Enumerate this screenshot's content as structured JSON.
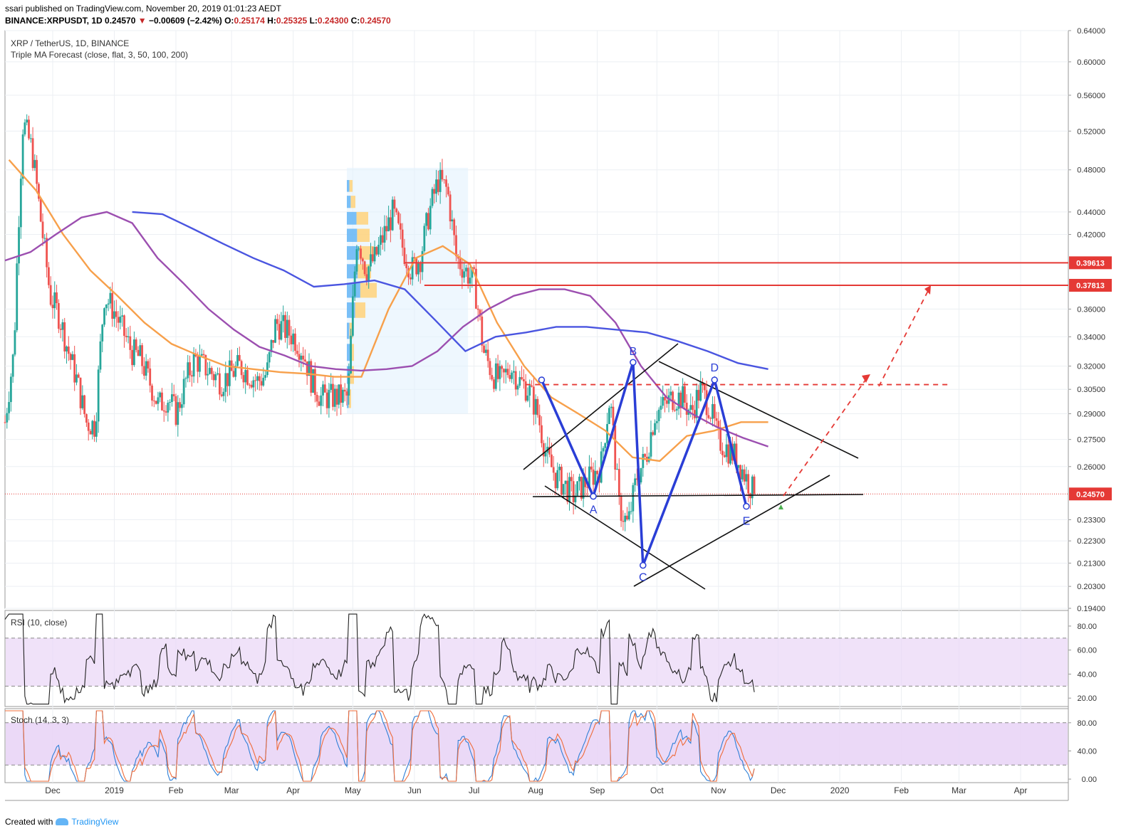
{
  "header": {
    "published": "ssari published on TradingView.com, November 20, 2019 01:01:23 AEDT",
    "symbol": "BINANCE:XRPUSDT, 1D",
    "last": "0.24570",
    "change": "−0.00609 (−2.42%)",
    "o_label": "O:",
    "o": "0.25174",
    "h_label": "H:",
    "h": "0.25325",
    "l_label": "L:",
    "l": "0.24300",
    "c_label": "C:",
    "c": "0.24570"
  },
  "legend": {
    "title": "XRP / TetherUS, 1D, BINANCE",
    "indicator": "Triple MA Forecast (close, flat, 3, 50, 100, 200)",
    "rsi": "RSI (10, close)",
    "stoch": "Stoch (14, 3, 3)"
  },
  "footer": {
    "created": "Created with",
    "brand": "TradingView"
  },
  "colors": {
    "up": "#26a69a",
    "down": "#ef5350",
    "ma50": "#f7a04b",
    "ma100": "#9c4fb0",
    "ma200": "#4a55e0",
    "pattern": "#2a3ed6",
    "resistance": "#e53935",
    "rsi": "#222222",
    "stoch_k": "#2e7fd6",
    "stoch_d": "#ef6c3a",
    "band": "#e9d5f6"
  },
  "chart_data": {
    "type": "candlestick",
    "price_axis": [
      "0.64000",
      "0.60000",
      "0.56000",
      "0.52000",
      "0.48000",
      "0.44000",
      "0.42000",
      "0.39613",
      "0.37813",
      "0.36000",
      "0.34000",
      "0.32000",
      "0.30500",
      "0.29000",
      "0.27500",
      "0.26000",
      "0.24570",
      "0.23300",
      "0.22300",
      "0.21300",
      "0.20300",
      "0.19400"
    ],
    "ylim": [
      0.194,
      0.64
    ],
    "time_axis": [
      "Dec",
      "2019",
      "Feb",
      "Mar",
      "Apr",
      "May",
      "Jun",
      "Jul",
      "Aug",
      "Sep",
      "Oct",
      "Nov",
      "Dec",
      "2020",
      "Feb",
      "Mar",
      "Apr"
    ],
    "levels": [
      {
        "label": "0.39613",
        "value": 0.39613
      },
      {
        "label": "0.37813",
        "value": 0.37813
      }
    ],
    "current_price": {
      "label": "0.24570",
      "value": 0.2457
    },
    "pattern_points": [
      {
        "label": "A",
        "date": "2019-08-30",
        "price": 0.2445
      },
      {
        "label": "B",
        "date": "2019-09-19",
        "price": 0.3225
      },
      {
        "label": "C",
        "date": "2019-09-24",
        "price": 0.212
      },
      {
        "label": "D",
        "date": "2019-10-30",
        "price": 0.311
      },
      {
        "label": "E",
        "date": "2019-11-15",
        "price": 0.2395
      }
    ],
    "close_series": [
      0.285,
      0.33,
      0.53,
      0.5,
      0.43,
      0.37,
      0.355,
      0.33,
      0.31,
      0.285,
      0.283,
      0.37,
      0.36,
      0.345,
      0.33,
      0.325,
      0.31,
      0.295,
      0.3,
      0.29,
      0.31,
      0.325,
      0.32,
      0.315,
      0.31,
      0.315,
      0.32,
      0.315,
      0.31,
      0.315,
      0.35,
      0.345,
      0.34,
      0.33,
      0.31,
      0.3,
      0.3,
      0.3,
      0.3,
      0.42,
      0.39,
      0.4,
      0.42,
      0.44,
      0.41,
      0.39,
      0.4,
      0.44,
      0.47,
      0.46,
      0.4,
      0.39,
      0.38,
      0.33,
      0.315,
      0.31,
      0.32,
      0.31,
      0.305,
      0.29,
      0.265,
      0.255,
      0.25,
      0.245,
      0.25,
      0.255,
      0.26,
      0.3,
      0.24,
      0.23,
      0.255,
      0.265,
      0.29,
      0.295,
      0.3,
      0.3,
      0.29,
      0.305,
      0.295,
      0.275,
      0.27,
      0.265,
      0.255,
      0.2457
    ],
    "ma50": [
      0.49,
      0.46,
      0.42,
      0.39,
      0.37,
      0.35,
      0.335,
      0.327,
      0.32,
      0.318,
      0.316,
      0.315,
      0.313,
      0.313,
      0.36,
      0.4,
      0.41,
      0.395,
      0.35,
      0.32,
      0.3,
      0.29,
      0.28,
      0.265,
      0.263,
      0.277,
      0.28,
      0.285,
      0.285
    ],
    "ma100": [
      0.398,
      0.405,
      0.42,
      0.435,
      0.44,
      0.43,
      0.4,
      0.38,
      0.36,
      0.345,
      0.333,
      0.327,
      0.32,
      0.318,
      0.317,
      0.318,
      0.32,
      0.33,
      0.347,
      0.36,
      0.37,
      0.375,
      0.375,
      0.37,
      0.35,
      0.32,
      0.3,
      0.29,
      0.282,
      0.276,
      0.271
    ],
    "ma200": [
      0.44,
      0.438,
      0.425,
      0.412,
      0.4,
      0.39,
      0.377,
      0.379,
      0.382,
      0.375,
      0.352,
      0.33,
      0.34,
      0.343,
      0.347,
      0.347,
      0.345,
      0.343,
      0.337,
      0.33,
      0.322,
      0.318
    ],
    "rsi": {
      "axis": [
        "80.00",
        "60.00",
        "40.00",
        "20.00"
      ],
      "band": [
        30,
        70
      ],
      "last": 25,
      "ylim": [
        13,
        93
      ]
    },
    "stoch": {
      "axis": [
        "80.00",
        "40.00",
        "0.00"
      ],
      "band": [
        20,
        80
      ],
      "last": 15,
      "ylim": [
        -5,
        100
      ]
    }
  }
}
